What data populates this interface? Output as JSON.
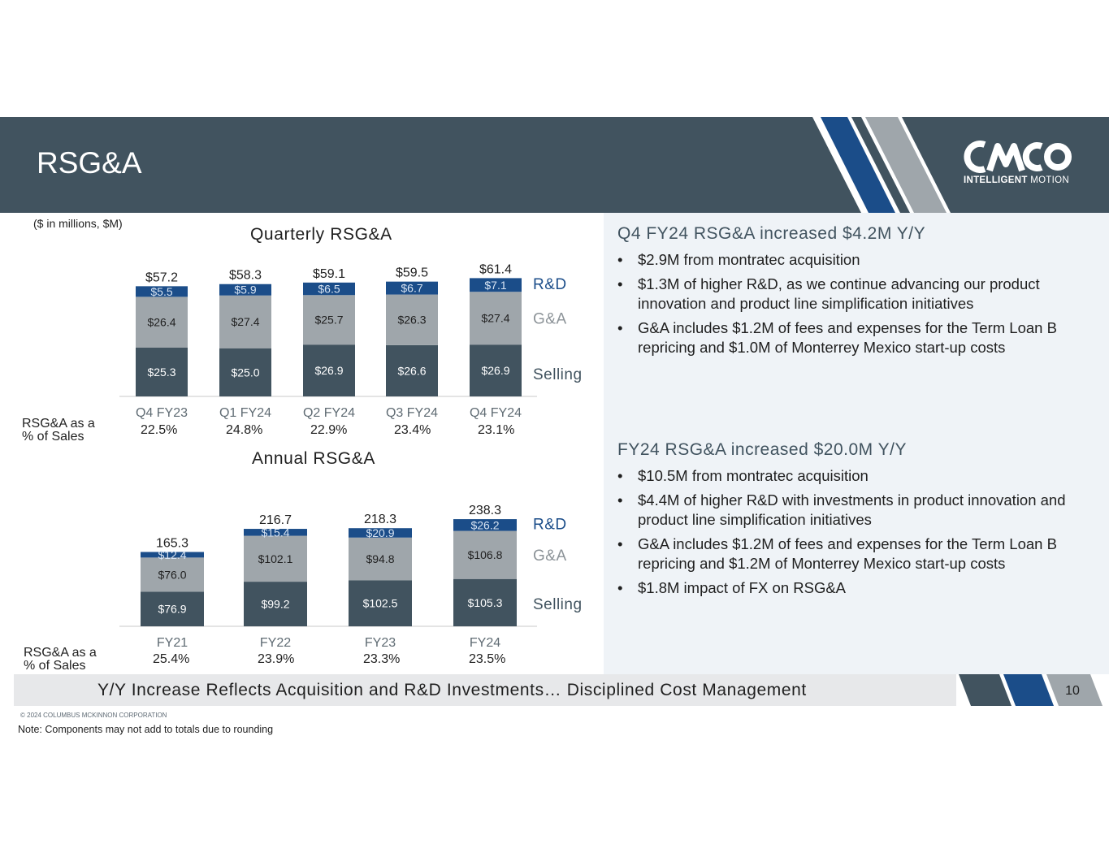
{
  "slide": {
    "title": "RSG&A",
    "units_note": "($ in millions, $M)",
    "logo_text_bold": "INTELLIGENT",
    "logo_text_regular": "MOTION",
    "footer_tagline": "Y/Y Increase Reflects Acquisition and R&D Investments… Disciplined Cost Management",
    "page_number": "10",
    "copyright": "© 2024 COLUMBUS MCKINNON CORPORATION",
    "footnote": "Note: Components may not add to totals due to rounding"
  },
  "colors": {
    "header_band": "#41535f",
    "selling": "#41535f",
    "ga": "#9fa6ab",
    "rd": "#1b4d89",
    "panel": "#eff3f7"
  },
  "quarterly_pct": {
    "label_line1": "RSG&A  as a",
    "label_line2": "% of Sales",
    "values": [
      "22.5%",
      "24.8%",
      "22.9%",
      "23.4%",
      "23.1%"
    ]
  },
  "annual_pct": {
    "label_line1": "RSG&A  as a",
    "label_line2": "% of Sales",
    "values": [
      "25.4%",
      "23.9%",
      "23.3%",
      "23.5%"
    ]
  },
  "chart_data": [
    {
      "type": "bar",
      "stacked": true,
      "title": "Quarterly RSG&A",
      "categories": [
        "Q4 FY23",
        "Q1 FY24",
        "Q2 FY24",
        "Q3 FY24",
        "Q4 FY24"
      ],
      "series": [
        {
          "name": "Selling",
          "values": [
            25.3,
            25.0,
            26.9,
            26.6,
            26.9
          ],
          "labels": [
            "$25.3",
            "$25.0",
            "$26.9",
            "$26.6",
            "$26.9"
          ]
        },
        {
          "name": "G&A",
          "values": [
            26.4,
            27.4,
            25.7,
            26.3,
            27.4
          ],
          "labels": [
            "$26.4",
            "$27.4",
            "$25.7",
            "$26.3",
            "$27.4"
          ]
        },
        {
          "name": "R&D",
          "values": [
            5.5,
            5.9,
            6.5,
            6.7,
            7.1
          ],
          "labels": [
            "$5.5",
            "$5.9",
            "$6.5",
            "$6.7",
            "$7.1"
          ]
        }
      ],
      "totals": [
        57.2,
        58.3,
        59.1,
        59.5,
        61.4
      ],
      "total_labels": [
        "$57.2",
        "$58.3",
        "$59.1",
        "$59.5",
        "$61.4"
      ],
      "legend": [
        "R&D",
        "G&A",
        "Selling"
      ],
      "legend_position": "right",
      "ylim": [
        0,
        70
      ],
      "xlabel": "",
      "ylabel": ""
    },
    {
      "type": "bar",
      "stacked": true,
      "title": "Annual RSG&A",
      "categories": [
        "FY21",
        "FY22",
        "FY23",
        "FY24"
      ],
      "series": [
        {
          "name": "Selling",
          "values": [
            76.9,
            99.2,
            102.5,
            105.3
          ],
          "labels": [
            "$76.9",
            "$99.2",
            "$102.5",
            "$105.3"
          ]
        },
        {
          "name": "G&A",
          "values": [
            76.0,
            102.1,
            94.8,
            106.8
          ],
          "labels": [
            "$76.0",
            "$102.1",
            "$94.8",
            "$106.8"
          ]
        },
        {
          "name": "R&D",
          "values": [
            12.4,
            15.4,
            20.9,
            26.2
          ],
          "labels": [
            "$12.4",
            "$15.4",
            "$20.9",
            "$26.2"
          ]
        }
      ],
      "totals": [
        165.3,
        216.7,
        218.3,
        238.3
      ],
      "total_labels": [
        "165.3",
        "216.7",
        "218.3",
        "238.3"
      ],
      "legend": [
        "R&D",
        "G&A",
        "Selling"
      ],
      "legend_position": "right",
      "ylim": [
        0,
        280
      ],
      "xlabel": "",
      "ylabel": ""
    }
  ],
  "commentary": [
    {
      "heading": "Q4 FY24 RSG&A increased $4.2M Y/Y",
      "bullets": [
        "$2.9M from montratec acquisition",
        "$1.3M of higher R&D, as we continue advancing our product innovation and product line simplification initiatives",
        "G&A includes $1.2M of fees and expenses for the Term Loan B repricing and $1.0M of Monterrey Mexico start-up costs"
      ]
    },
    {
      "heading": "FY24 RSG&A increased $20.0M Y/Y",
      "bullets": [
        "$10.5M from montratec acquisition",
        "$4.4M of higher R&D with investments in product innovation and product line simplification initiatives",
        "G&A includes $1.2M of fees and expenses for the Term Loan B repricing and $1.2M of Monterrey Mexico start-up costs",
        "$1.8M impact of FX on RSG&A"
      ]
    }
  ]
}
